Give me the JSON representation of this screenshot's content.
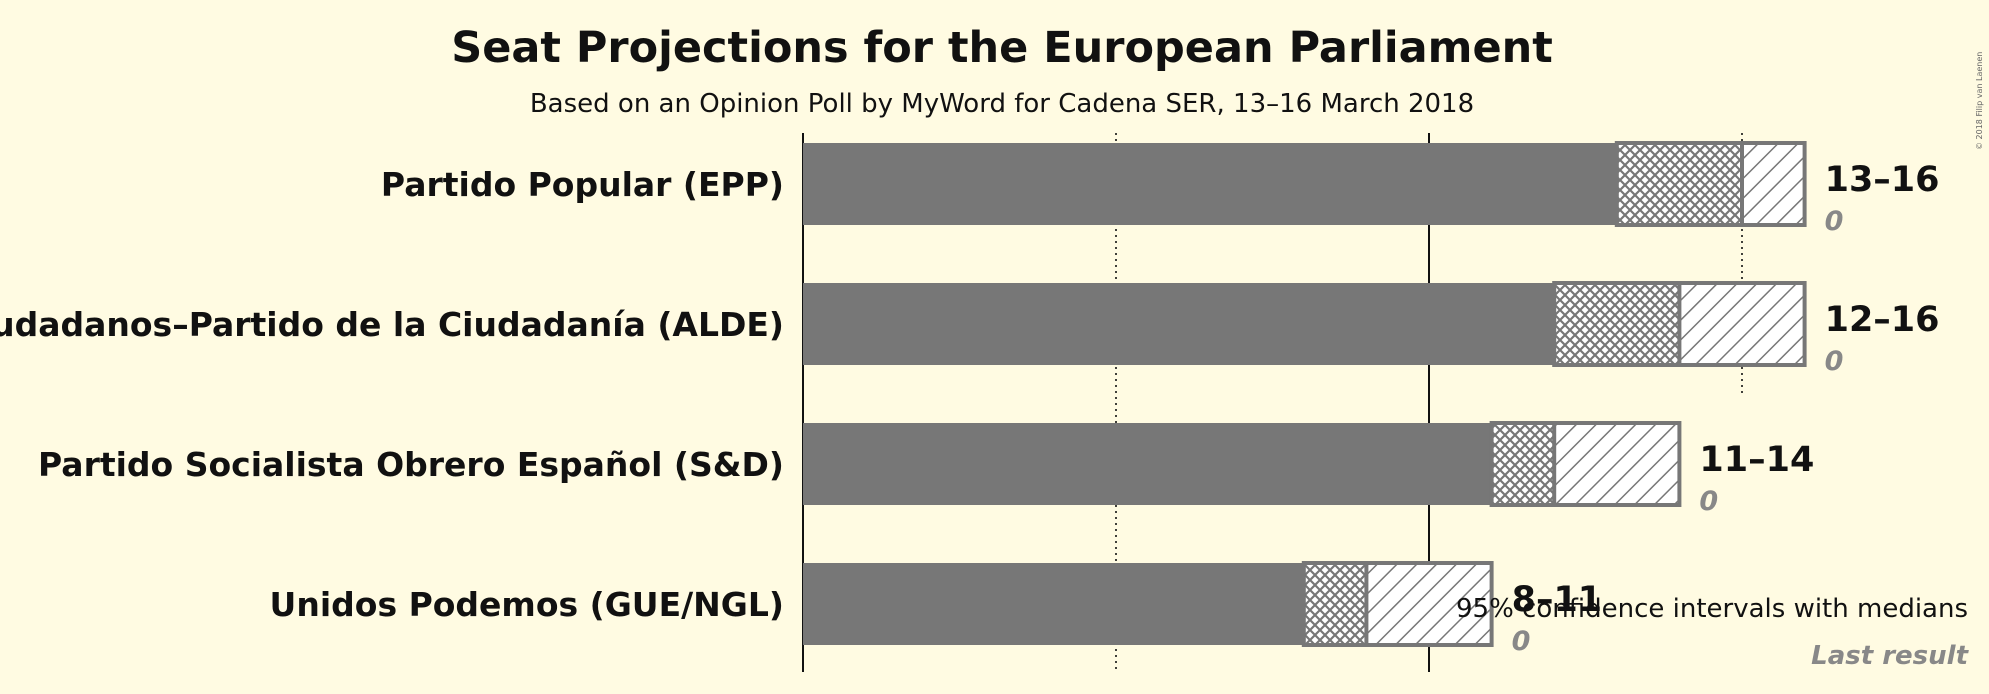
{
  "chart_data": {
    "type": "bar",
    "title": "Seat Projections for the European Parliament",
    "subtitle": "Based on an Opinion Poll by MyWord for Cadena SER, 13–16 March 2018",
    "copyright": "© 2018 Filip van Laenen",
    "x_axis": {
      "min": 0,
      "max": 16,
      "solid_lines": [
        0,
        10
      ],
      "dotted_lines": [
        5,
        15
      ]
    },
    "categories": [
      "Partido Popular (EPP)",
      "Ciudadanos–Partido de la Ciudadanía (ALDE)",
      "Partido Socialista Obrero Español (S&D)",
      "Unidos Podemos (GUE/NGL)"
    ],
    "series": [
      {
        "low": 13,
        "median": 15,
        "high": 16,
        "range_label": "13–16",
        "last_result": "0"
      },
      {
        "low": 12,
        "median": 14,
        "high": 16,
        "range_label": "12–16",
        "last_result": "0"
      },
      {
        "low": 11,
        "median": 12,
        "high": 14,
        "range_label": "11–14",
        "last_result": "0"
      },
      {
        "low": 8,
        "median": 9,
        "high": 11,
        "range_label": "8–11",
        "last_result": "0"
      }
    ],
    "legend": {
      "ci_label": "95% confidence intervals with medians",
      "last_result_label": "Last result"
    },
    "colors": {
      "bar": "#777777",
      "background": "#fffbe2",
      "hatch": "#777777"
    }
  }
}
